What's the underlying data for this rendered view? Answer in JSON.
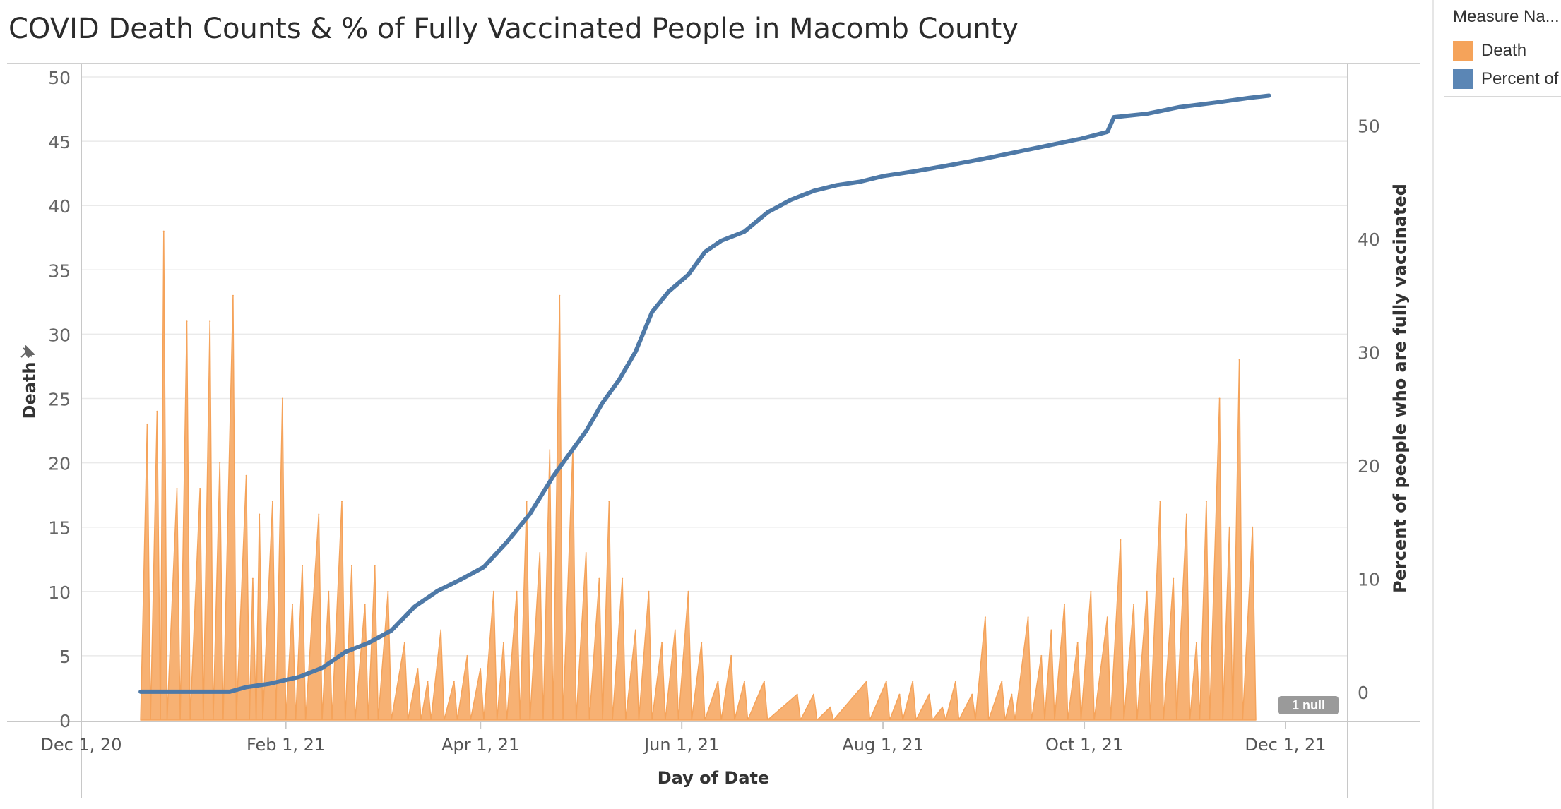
{
  "title": "COVID Death Counts & % of Fully Vaccinated People in Macomb County",
  "legend": {
    "title": "Measure Na...",
    "items": [
      {
        "label": "Death",
        "color": "#f5a35a"
      },
      {
        "label": "Percent of",
        "color": "#5b86b5"
      }
    ]
  },
  "null_badge": "1 null",
  "colors": {
    "death": "#f5a35a",
    "death_fill": "#f7b173",
    "vaccinated": "#4e79a7",
    "grid": "#eaeaea",
    "axis": "#c8c8c8"
  },
  "chart_data": {
    "type": "area",
    "title": "COVID Death Counts & % of Fully Vaccinated People in Macomb County",
    "xlabel": "Day of Date",
    "ylabel": "Death",
    "y2label": "Percent of people who are fully vaccinated",
    "x_range": [
      "2020-12-01",
      "2021-12-01"
    ],
    "x_ticks": [
      {
        "date": "2020-12-01",
        "label": "Dec 1, 20"
      },
      {
        "date": "2021-02-01",
        "label": "Feb 1, 21"
      },
      {
        "date": "2021-04-01",
        "label": "Apr 1, 21"
      },
      {
        "date": "2021-06-01",
        "label": "Jun 1, 21"
      },
      {
        "date": "2021-08-01",
        "label": "Aug 1, 21"
      },
      {
        "date": "2021-10-01",
        "label": "Oct 1, 21"
      },
      {
        "date": "2021-12-01",
        "label": "Dec 1, 21"
      }
    ],
    "ylim": [
      0,
      50
    ],
    "y_ticks": [
      0,
      5,
      10,
      15,
      20,
      25,
      30,
      35,
      40,
      45,
      50
    ],
    "y2lim": [
      -2.5,
      55
    ],
    "y2_ticks": [
      0,
      10,
      20,
      30,
      40,
      50
    ],
    "series": [
      {
        "name": "Death",
        "axis": "left",
        "style": "area",
        "points": [
          [
            "2020-12-19",
            0
          ],
          [
            "2020-12-21",
            23
          ],
          [
            "2020-12-22",
            0
          ],
          [
            "2020-12-24",
            24
          ],
          [
            "2020-12-25",
            0
          ],
          [
            "2020-12-26",
            38
          ],
          [
            "2020-12-27",
            0
          ],
          [
            "2020-12-30",
            18
          ],
          [
            "2020-12-31",
            0
          ],
          [
            "2021-01-02",
            31
          ],
          [
            "2021-01-03",
            0
          ],
          [
            "2021-01-06",
            18
          ],
          [
            "2021-01-07",
            0
          ],
          [
            "2021-01-09",
            31
          ],
          [
            "2021-01-10",
            0
          ],
          [
            "2021-01-12",
            20
          ],
          [
            "2021-01-13",
            0
          ],
          [
            "2021-01-16",
            33
          ],
          [
            "2021-01-17",
            0
          ],
          [
            "2021-01-20",
            19
          ],
          [
            "2021-01-21",
            0
          ],
          [
            "2021-01-22",
            11
          ],
          [
            "2021-01-23",
            0
          ],
          [
            "2021-01-24",
            16
          ],
          [
            "2021-01-25",
            0
          ],
          [
            "2021-01-28",
            17
          ],
          [
            "2021-01-29",
            0
          ],
          [
            "2021-01-31",
            25
          ],
          [
            "2021-02-01",
            0
          ],
          [
            "2021-02-03",
            9
          ],
          [
            "2021-02-04",
            0
          ],
          [
            "2021-02-06",
            12
          ],
          [
            "2021-02-07",
            0
          ],
          [
            "2021-02-11",
            16
          ],
          [
            "2021-02-12",
            0
          ],
          [
            "2021-02-14",
            10
          ],
          [
            "2021-02-15",
            0
          ],
          [
            "2021-02-18",
            17
          ],
          [
            "2021-02-19",
            0
          ],
          [
            "2021-02-21",
            12
          ],
          [
            "2021-02-22",
            0
          ],
          [
            "2021-02-25",
            9
          ],
          [
            "2021-02-26",
            0
          ],
          [
            "2021-02-28",
            12
          ],
          [
            "2021-03-01",
            0
          ],
          [
            "2021-03-04",
            10
          ],
          [
            "2021-03-05",
            0
          ],
          [
            "2021-03-09",
            6
          ],
          [
            "2021-03-10",
            0
          ],
          [
            "2021-03-13",
            4
          ],
          [
            "2021-03-14",
            0
          ],
          [
            "2021-03-16",
            3
          ],
          [
            "2021-03-17",
            0
          ],
          [
            "2021-03-20",
            7
          ],
          [
            "2021-03-21",
            0
          ],
          [
            "2021-03-24",
            3
          ],
          [
            "2021-03-25",
            0
          ],
          [
            "2021-03-28",
            5
          ],
          [
            "2021-03-29",
            0
          ],
          [
            "2021-04-01",
            4
          ],
          [
            "2021-04-02",
            0
          ],
          [
            "2021-04-05",
            10
          ],
          [
            "2021-04-06",
            0
          ],
          [
            "2021-04-08",
            6
          ],
          [
            "2021-04-09",
            0
          ],
          [
            "2021-04-12",
            10
          ],
          [
            "2021-04-13",
            0
          ],
          [
            "2021-04-15",
            17
          ],
          [
            "2021-04-16",
            0
          ],
          [
            "2021-04-19",
            13
          ],
          [
            "2021-04-20",
            0
          ],
          [
            "2021-04-22",
            21
          ],
          [
            "2021-04-23",
            0
          ],
          [
            "2021-04-25",
            33
          ],
          [
            "2021-04-26",
            0
          ],
          [
            "2021-04-29",
            21
          ],
          [
            "2021-04-30",
            0
          ],
          [
            "2021-05-03",
            13
          ],
          [
            "2021-05-04",
            0
          ],
          [
            "2021-05-07",
            11
          ],
          [
            "2021-05-08",
            0
          ],
          [
            "2021-05-10",
            17
          ],
          [
            "2021-05-11",
            0
          ],
          [
            "2021-05-14",
            11
          ],
          [
            "2021-05-15",
            0
          ],
          [
            "2021-05-18",
            7
          ],
          [
            "2021-05-19",
            0
          ],
          [
            "2021-05-22",
            10
          ],
          [
            "2021-05-23",
            0
          ],
          [
            "2021-05-26",
            6
          ],
          [
            "2021-05-27",
            0
          ],
          [
            "2021-05-30",
            7
          ],
          [
            "2021-05-31",
            0
          ],
          [
            "2021-06-03",
            10
          ],
          [
            "2021-06-04",
            0
          ],
          [
            "2021-06-07",
            6
          ],
          [
            "2021-06-08",
            0
          ],
          [
            "2021-06-12",
            3
          ],
          [
            "2021-06-13",
            0
          ],
          [
            "2021-06-16",
            5
          ],
          [
            "2021-06-17",
            0
          ],
          [
            "2021-06-20",
            3
          ],
          [
            "2021-06-21",
            0
          ],
          [
            "2021-06-26",
            3
          ],
          [
            "2021-06-27",
            0
          ],
          [
            "2021-07-06",
            2
          ],
          [
            "2021-07-07",
            0
          ],
          [
            "2021-07-11",
            2
          ],
          [
            "2021-07-12",
            0
          ],
          [
            "2021-07-16",
            1
          ],
          [
            "2021-07-17",
            0
          ],
          [
            "2021-07-27",
            3
          ],
          [
            "2021-07-28",
            0
          ],
          [
            "2021-08-02",
            3
          ],
          [
            "2021-08-03",
            0
          ],
          [
            "2021-08-06",
            2
          ],
          [
            "2021-08-07",
            0
          ],
          [
            "2021-08-10",
            3
          ],
          [
            "2021-08-11",
            0
          ],
          [
            "2021-08-15",
            2
          ],
          [
            "2021-08-16",
            0
          ],
          [
            "2021-08-19",
            1
          ],
          [
            "2021-08-20",
            0
          ],
          [
            "2021-08-23",
            3
          ],
          [
            "2021-08-24",
            0
          ],
          [
            "2021-08-28",
            2
          ],
          [
            "2021-08-29",
            0
          ],
          [
            "2021-09-01",
            8
          ],
          [
            "2021-09-02",
            0
          ],
          [
            "2021-09-06",
            3
          ],
          [
            "2021-09-07",
            0
          ],
          [
            "2021-09-09",
            2
          ],
          [
            "2021-09-10",
            0
          ],
          [
            "2021-09-14",
            8
          ],
          [
            "2021-09-15",
            0
          ],
          [
            "2021-09-18",
            5
          ],
          [
            "2021-09-19",
            0
          ],
          [
            "2021-09-21",
            7
          ],
          [
            "2021-09-22",
            0
          ],
          [
            "2021-09-25",
            9
          ],
          [
            "2021-09-26",
            0
          ],
          [
            "2021-09-29",
            6
          ],
          [
            "2021-09-30",
            0
          ],
          [
            "2021-10-03",
            10
          ],
          [
            "2021-10-04",
            0
          ],
          [
            "2021-10-08",
            8
          ],
          [
            "2021-10-09",
            0
          ],
          [
            "2021-10-12",
            14
          ],
          [
            "2021-10-13",
            0
          ],
          [
            "2021-10-16",
            9
          ],
          [
            "2021-10-17",
            0
          ],
          [
            "2021-10-20",
            10
          ],
          [
            "2021-10-21",
            0
          ],
          [
            "2021-10-24",
            17
          ],
          [
            "2021-10-25",
            0
          ],
          [
            "2021-10-28",
            11
          ],
          [
            "2021-10-29",
            0
          ],
          [
            "2021-11-01",
            16
          ],
          [
            "2021-11-02",
            0
          ],
          [
            "2021-11-04",
            6
          ],
          [
            "2021-11-05",
            0
          ],
          [
            "2021-11-07",
            17
          ],
          [
            "2021-11-08",
            0
          ],
          [
            "2021-11-11",
            25
          ],
          [
            "2021-11-12",
            0
          ],
          [
            "2021-11-14",
            15
          ],
          [
            "2021-11-15",
            0
          ],
          [
            "2021-11-17",
            28
          ],
          [
            "2021-11-18",
            0
          ],
          [
            "2021-11-21",
            15
          ],
          [
            "2021-11-22",
            0
          ]
        ]
      },
      {
        "name": "Percent of",
        "axis": "right",
        "style": "line",
        "points": [
          [
            "2020-12-19",
            0
          ],
          [
            "2021-01-01",
            0
          ],
          [
            "2021-01-15",
            0
          ],
          [
            "2021-01-20",
            0.4
          ],
          [
            "2021-01-27",
            0.7
          ],
          [
            "2021-02-05",
            1.3
          ],
          [
            "2021-02-12",
            2.1
          ],
          [
            "2021-02-19",
            3.5
          ],
          [
            "2021-02-26",
            4.3
          ],
          [
            "2021-03-05",
            5.4
          ],
          [
            "2021-03-12",
            7.5
          ],
          [
            "2021-03-19",
            8.9
          ],
          [
            "2021-03-26",
            9.9
          ],
          [
            "2021-04-02",
            11.0
          ],
          [
            "2021-04-09",
            13.2
          ],
          [
            "2021-04-16",
            15.7
          ],
          [
            "2021-04-23",
            19.0
          ],
          [
            "2021-04-28",
            21.0
          ],
          [
            "2021-05-03",
            23.0
          ],
          [
            "2021-05-08",
            25.5
          ],
          [
            "2021-05-13",
            27.5
          ],
          [
            "2021-05-18",
            30.0
          ],
          [
            "2021-05-23",
            33.5
          ],
          [
            "2021-05-28",
            35.3
          ],
          [
            "2021-06-03",
            36.8
          ],
          [
            "2021-06-08",
            38.8
          ],
          [
            "2021-06-13",
            39.8
          ],
          [
            "2021-06-20",
            40.6
          ],
          [
            "2021-06-27",
            42.3
          ],
          [
            "2021-07-04",
            43.4
          ],
          [
            "2021-07-11",
            44.2
          ],
          [
            "2021-07-18",
            44.7
          ],
          [
            "2021-07-25",
            45.0
          ],
          [
            "2021-08-01",
            45.5
          ],
          [
            "2021-08-10",
            45.9
          ],
          [
            "2021-08-20",
            46.4
          ],
          [
            "2021-08-31",
            47.0
          ],
          [
            "2021-09-10",
            47.6
          ],
          [
            "2021-09-20",
            48.2
          ],
          [
            "2021-09-30",
            48.8
          ],
          [
            "2021-10-08",
            49.4
          ],
          [
            "2021-10-10",
            50.7
          ],
          [
            "2021-10-20",
            51.0
          ],
          [
            "2021-10-30",
            51.6
          ],
          [
            "2021-11-10",
            52.0
          ],
          [
            "2021-11-20",
            52.4
          ],
          [
            "2021-11-26",
            52.6
          ]
        ]
      }
    ],
    "grid": true,
    "legend_position": "top-right"
  }
}
